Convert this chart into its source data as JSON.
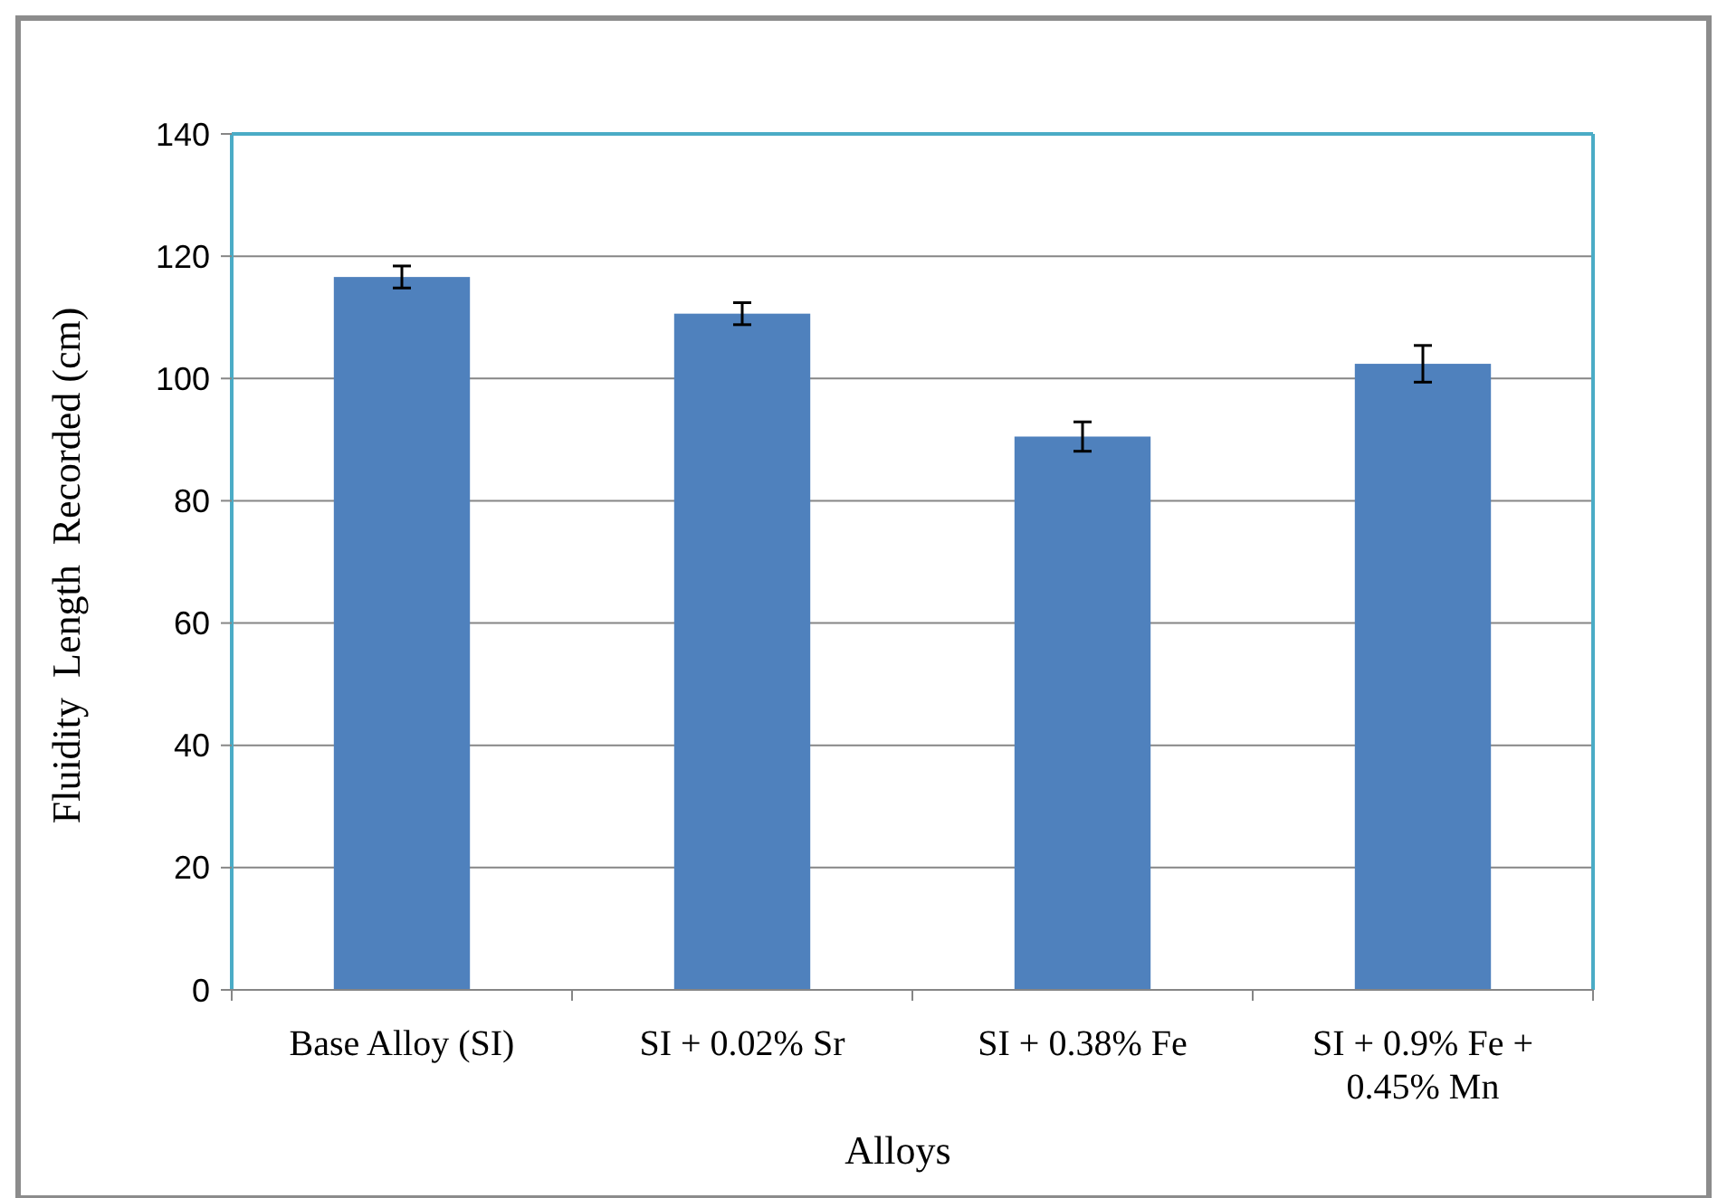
{
  "chart_data": {
    "type": "bar",
    "xlabel": "Alloys",
    "ylabel": "Fluidity  Length  Recorded (cm)",
    "categories": [
      "Base Alloy (SI)",
      "SI + 0.02% Sr",
      "SI + 0.38% Fe",
      "SI + 0.9% Fe + 0.45% Mn"
    ],
    "values": [
      116.6,
      110.6,
      90.5,
      102.4
    ],
    "errors": [
      1.8,
      1.8,
      2.4,
      3
    ],
    "color": "#4f81bd",
    "ylim": [
      0,
      140
    ],
    "yticks": [
      0,
      20,
      40,
      60,
      80,
      100,
      120,
      140
    ],
    "grid": "y"
  }
}
